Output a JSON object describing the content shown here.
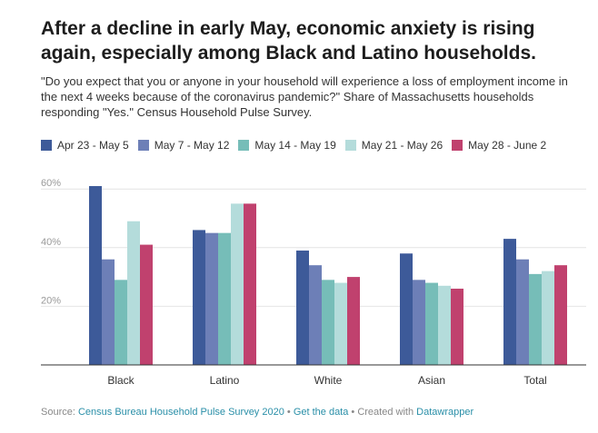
{
  "header": {
    "title": "After a decline in early May, economic anxiety is rising again, especially among Black and Latino households.",
    "subtitle": "\"Do you expect that you or anyone in your household will experience a loss of employment income in the next 4 weeks because of the coronavirus pandemic?\" Share of Massachusetts households responding \"Yes.\" Census Household Pulse Survey."
  },
  "chart_data": {
    "type": "bar",
    "categories": [
      "Black",
      "Latino",
      "White",
      "Asian",
      "Total"
    ],
    "series": [
      {
        "name": "Apr 23 - May 5",
        "color": "#3d5a99",
        "values": [
          61,
          46,
          39,
          38,
          43
        ]
      },
      {
        "name": "May 7 - May 12",
        "color": "#6d7fb7",
        "values": [
          36,
          45,
          34,
          29,
          36
        ]
      },
      {
        "name": "May 14 - May 19",
        "color": "#76bdb8",
        "values": [
          29,
          45,
          29,
          28,
          31
        ]
      },
      {
        "name": "May 21 - May 26",
        "color": "#b4dcdb",
        "values": [
          49,
          55,
          28,
          27,
          32
        ]
      },
      {
        "name": "May 28 - June 2",
        "color": "#c0416e",
        "values": [
          41,
          55,
          30,
          26,
          34
        ]
      }
    ],
    "yticks": [
      {
        "value": 20,
        "label": "20%"
      },
      {
        "value": 40,
        "label": "40%"
      },
      {
        "value": 60,
        "label": "60%"
      }
    ],
    "ylim": [
      0,
      62
    ],
    "legend_position": "top-left",
    "grid": true
  },
  "footer": {
    "source_prefix": "Source: ",
    "source_link": "Census Bureau Household Pulse Survey 2020",
    "sep1": " • ",
    "get_data": "Get the data",
    "sep2": " • Created with ",
    "tool": "Datawrapper"
  }
}
